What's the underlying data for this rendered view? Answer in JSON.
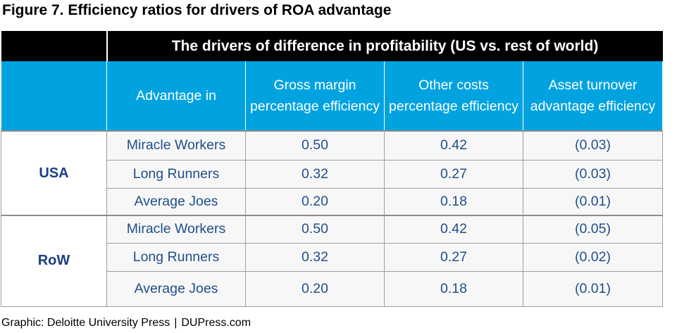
{
  "figure": {
    "title": "Figure 7. Efficiency ratios for drivers of ROA advantage",
    "banner": "The drivers of difference in profitability (US vs. rest of world)",
    "credit_left": "Graphic: Deloitte University Press",
    "credit_separator": "|",
    "credit_right": "DUPress.com"
  },
  "table": {
    "headers": [
      "Advantage in",
      "Gross margin percentage efficiency",
      "Other costs percentage efficiency",
      "Asset turnover advantage efficiency"
    ],
    "groups": [
      {
        "label": "USA",
        "rows": [
          [
            "Miracle Workers",
            "0.50",
            "0.42",
            "(0.03)"
          ],
          [
            "Long Runners",
            "0.32",
            "0.27",
            "(0.03)"
          ],
          [
            "Average Joes",
            "0.20",
            "0.18",
            "(0.01)"
          ]
        ]
      },
      {
        "label": "RoW",
        "rows": [
          [
            "Miracle Workers",
            "0.50",
            "0.42",
            "(0.05)"
          ],
          [
            "Long Runners",
            "0.32",
            "0.27",
            "(0.02)"
          ],
          [
            "Average Joes",
            "0.20",
            "0.18",
            "(0.01)"
          ]
        ]
      }
    ]
  },
  "colors": {
    "header_black": "#000000",
    "header_cyan": "#00a3e0",
    "body_text": "#1e4f8a",
    "group_text": "#1b3f86"
  }
}
